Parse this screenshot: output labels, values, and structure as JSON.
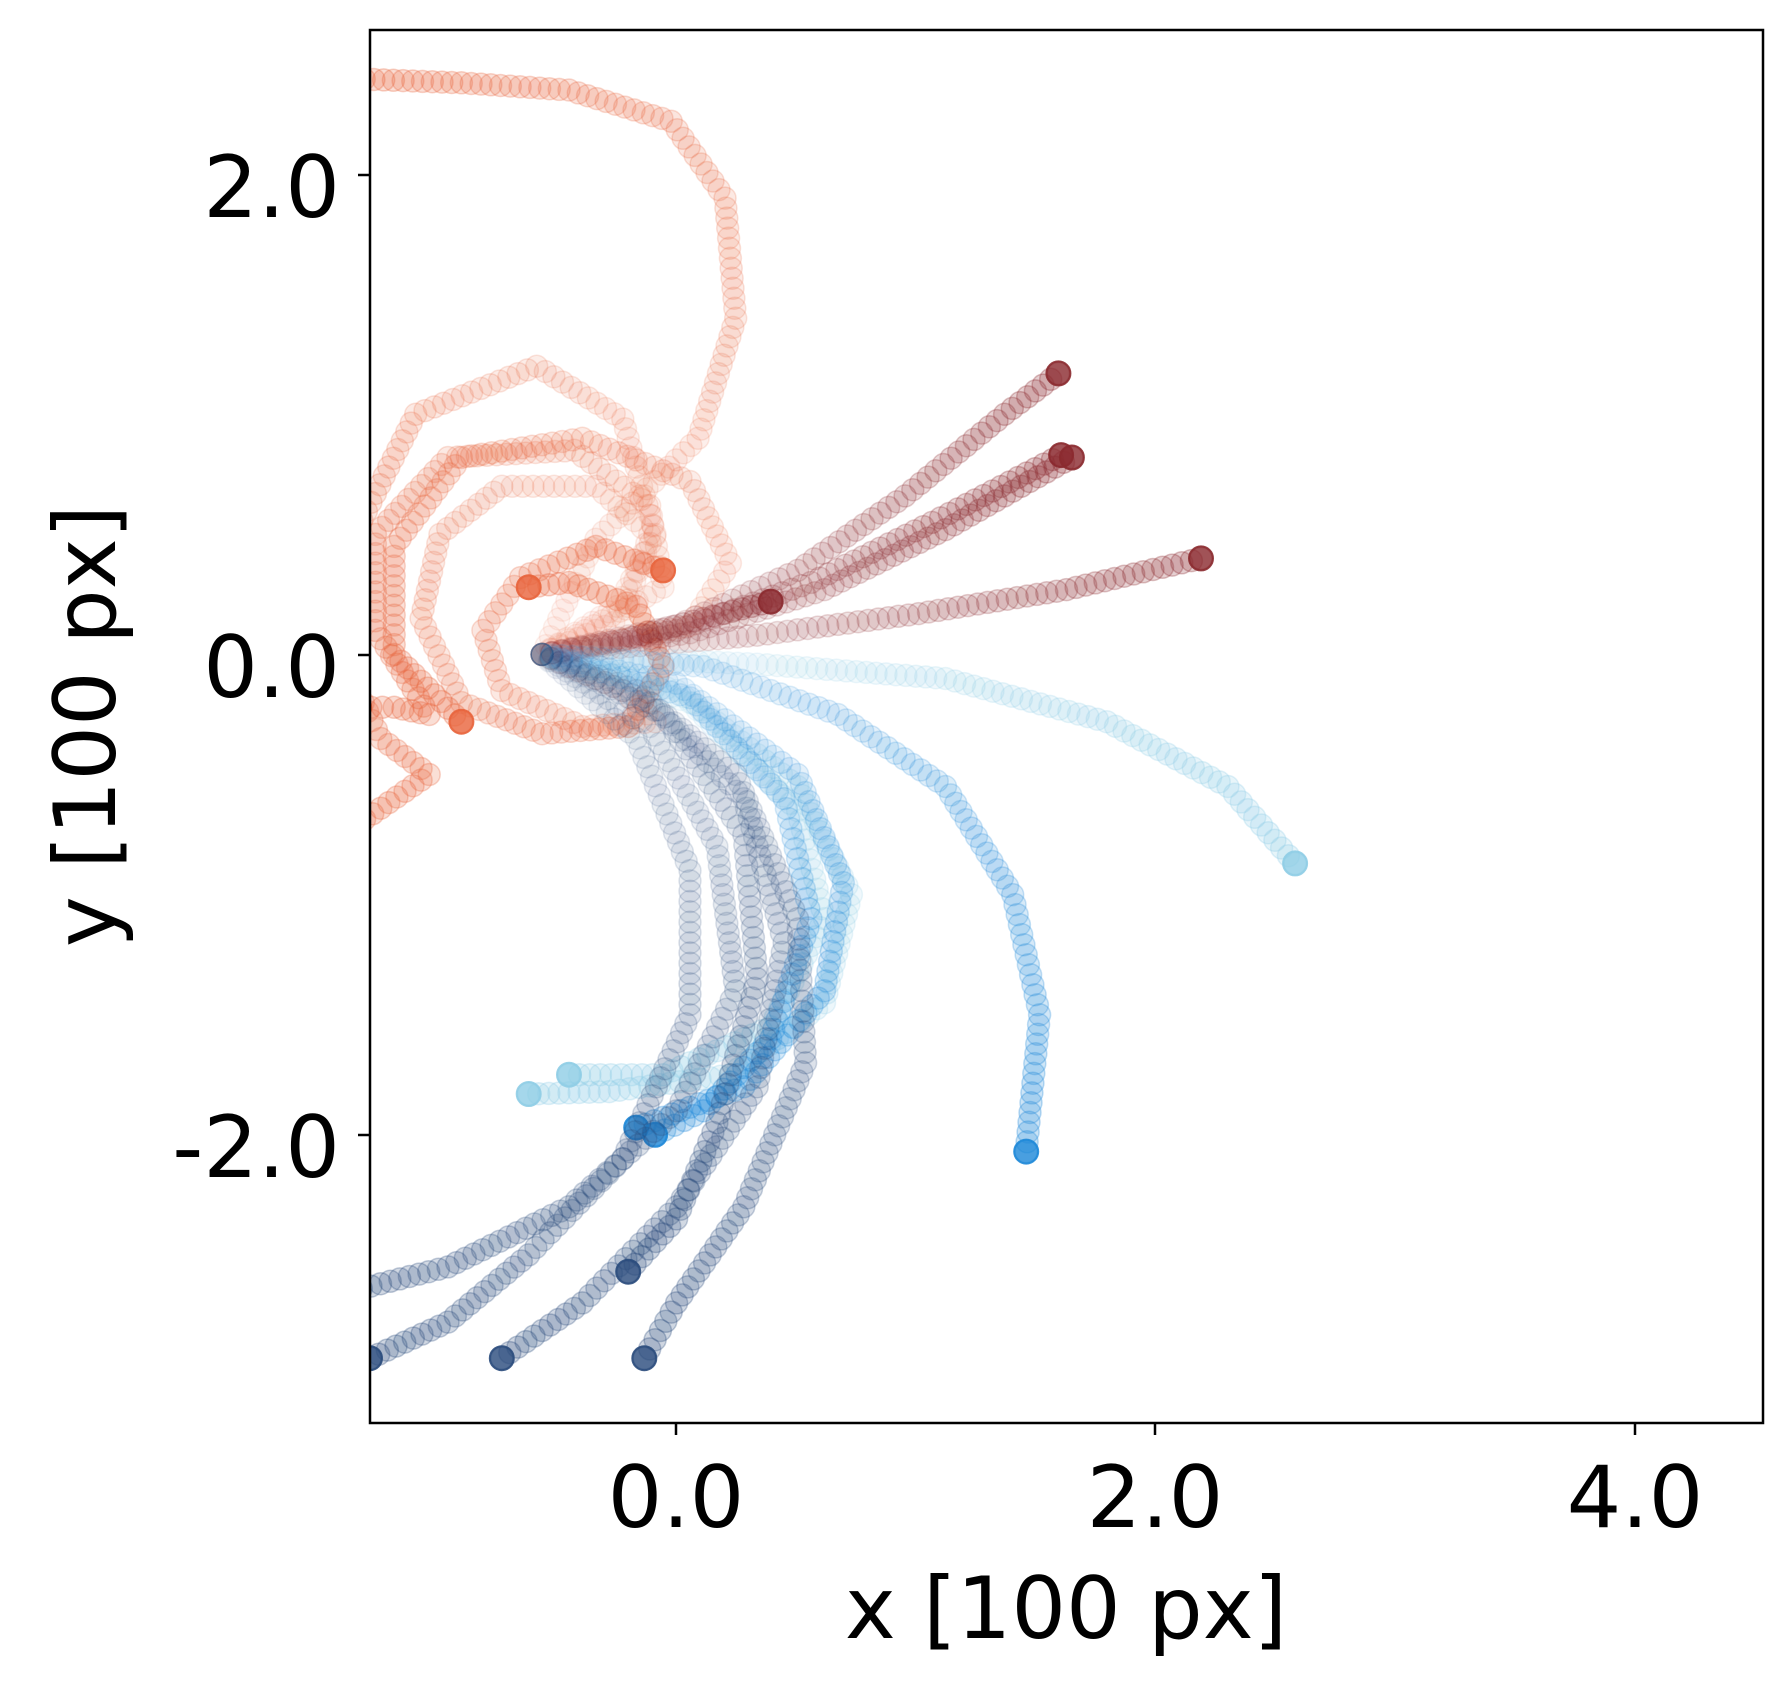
{
  "chart_data": {
    "type": "scatter",
    "title": "",
    "xlabel": "x [100 px]",
    "ylabel": "y [100 px]",
    "xlim": [
      -0.64,
      4.54
    ],
    "ylim": [
      -3.2,
      2.6
    ],
    "xticks": [
      0.0,
      2.0,
      4.0
    ],
    "xtick_labels": [
      "0.0",
      "2.0",
      "4.0"
    ],
    "yticks": [
      2.0,
      0.0,
      -2.0
    ],
    "ytick_labels": [
      "2.0",
      "0.0",
      "-2.0"
    ],
    "grid": false,
    "legend": "none",
    "marker": "circle-trajectory",
    "series": [
      {
        "color": "#e8643c",
        "points": [
          [
            0,
            0
          ],
          [
            0.28,
            0.2
          ],
          [
            0.42,
            0.5
          ],
          [
            0.3,
            0.98
          ],
          [
            -0.02,
            1.2
          ],
          [
            -0.47,
            1.0
          ],
          [
            -0.72,
            0.45
          ],
          [
            -0.73,
            -0.05
          ],
          [
            -0.6,
            -0.35
          ],
          [
            -0.42,
            -0.5
          ],
          [
            -0.78,
            -0.78
          ]
        ]
      },
      {
        "color": "#e8643c",
        "points": [
          [
            0,
            0
          ],
          [
            0.2,
            0.48
          ],
          [
            0.58,
            0.9
          ],
          [
            0.72,
            1.4
          ],
          [
            0.68,
            1.9
          ],
          [
            0.48,
            2.22
          ],
          [
            0.1,
            2.35
          ],
          [
            -0.3,
            2.38
          ],
          [
            -0.77,
            2.4
          ]
        ]
      },
      {
        "color": "#e8643c",
        "points": [
          [
            0,
            0
          ],
          [
            0.45,
            0.28
          ],
          [
            0.4,
            0.62
          ],
          [
            0.12,
            0.85
          ],
          [
            -0.35,
            0.82
          ],
          [
            -0.62,
            0.5
          ],
          [
            -0.62,
            0.1
          ],
          [
            -0.42,
            -0.25
          ],
          [
            -0.55,
            -0.22
          ],
          [
            -0.68,
            -0.22
          ]
        ]
      },
      {
        "color": "#e8643c",
        "points": [
          [
            0,
            0
          ],
          [
            0.3,
            0.15
          ],
          [
            0.4,
            0.5
          ],
          [
            0.2,
            0.7
          ],
          [
            -0.15,
            0.7
          ],
          [
            -0.38,
            0.5
          ],
          [
            -0.45,
            0.15
          ],
          [
            -0.3,
            -0.2
          ],
          [
            0.0,
            -0.33
          ],
          [
            0.32,
            -0.3
          ],
          [
            0.45,
            -0.05
          ],
          [
            0.35,
            0.2
          ],
          [
            0.1,
            0.3
          ],
          [
            -0.05,
            0.28
          ]
        ]
      },
      {
        "color": "#e8643c",
        "points": [
          [
            0,
            0
          ],
          [
            0.3,
            -0.15
          ],
          [
            0.42,
            -0.28
          ],
          [
            0.15,
            -0.3
          ],
          [
            -0.15,
            -0.15
          ],
          [
            -0.22,
            0.1
          ],
          [
            -0.08,
            0.32
          ],
          [
            0.2,
            0.45
          ],
          [
            0.45,
            0.35
          ]
        ]
      },
      {
        "color": "#e8643c",
        "points": [
          [
            0,
            0
          ],
          [
            0.55,
            0.12
          ],
          [
            0.7,
            0.38
          ],
          [
            0.55,
            0.72
          ],
          [
            0.15,
            0.9
          ],
          [
            -0.3,
            0.82
          ],
          [
            -0.55,
            0.45
          ],
          [
            -0.55,
            0.0
          ],
          [
            -0.3,
            -0.28
          ]
        ]
      },
      {
        "color": "#8b2a2f",
        "points": [
          [
            0,
            0
          ],
          [
            0.5,
            0.12
          ],
          [
            0.95,
            0.35
          ],
          [
            1.35,
            0.66
          ],
          [
            1.72,
            1.0
          ],
          [
            1.92,
            1.17
          ]
        ]
      },
      {
        "color": "#8b2a2f",
        "points": [
          [
            0,
            0
          ],
          [
            0.5,
            0.1
          ],
          [
            1.0,
            0.3
          ],
          [
            1.45,
            0.55
          ],
          [
            1.93,
            0.83
          ]
        ]
      },
      {
        "color": "#8b2a2f",
        "points": [
          [
            0,
            0
          ],
          [
            0.55,
            0.09
          ],
          [
            1.05,
            0.27
          ],
          [
            1.5,
            0.52
          ],
          [
            1.97,
            0.82
          ]
        ]
      },
      {
        "color": "#8b2a2f",
        "points": [
          [
            0,
            0
          ],
          [
            0.8,
            0.08
          ],
          [
            1.4,
            0.17
          ],
          [
            1.95,
            0.27
          ],
          [
            2.45,
            0.4
          ]
        ]
      },
      {
        "color": "#8b2a2f",
        "points": [
          [
            0,
            0
          ],
          [
            0.3,
            0.06
          ],
          [
            0.6,
            0.15
          ],
          [
            0.85,
            0.22
          ]
        ]
      },
      {
        "color": "#8fcde6",
        "points": [
          [
            0,
            0
          ],
          [
            0.8,
            -0.04
          ],
          [
            1.5,
            -0.1
          ],
          [
            2.1,
            -0.28
          ],
          [
            2.55,
            -0.55
          ],
          [
            2.8,
            -0.87
          ]
        ]
      },
      {
        "color": "#8fcde6",
        "points": [
          [
            0,
            0
          ],
          [
            0.5,
            -0.15
          ],
          [
            0.95,
            -0.55
          ],
          [
            1.15,
            -1.0
          ],
          [
            1.05,
            -1.45
          ],
          [
            0.7,
            -1.75
          ],
          [
            0.25,
            -1.82
          ],
          [
            -0.05,
            -1.83
          ]
        ]
      },
      {
        "color": "#8fcde6",
        "points": [
          [
            0,
            0
          ],
          [
            0.55,
            -0.2
          ],
          [
            0.95,
            -0.65
          ],
          [
            1.05,
            -1.1
          ],
          [
            0.85,
            -1.55
          ],
          [
            0.45,
            -1.75
          ],
          [
            0.1,
            -1.75
          ]
        ]
      },
      {
        "color": "#1e88d8",
        "points": [
          [
            0,
            0
          ],
          [
            0.6,
            -0.05
          ],
          [
            1.1,
            -0.25
          ],
          [
            1.5,
            -0.55
          ],
          [
            1.75,
            -1.0
          ],
          [
            1.85,
            -1.5
          ],
          [
            1.8,
            -2.07
          ]
        ]
      },
      {
        "color": "#1e88d8",
        "points": [
          [
            0,
            0
          ],
          [
            0.55,
            -0.18
          ],
          [
            0.9,
            -0.6
          ],
          [
            1.0,
            -1.1
          ],
          [
            0.85,
            -1.6
          ],
          [
            0.6,
            -1.9
          ],
          [
            0.42,
            -2.0
          ]
        ]
      },
      {
        "color": "#1e88d8",
        "points": [
          [
            0,
            0
          ],
          [
            0.5,
            -0.12
          ],
          [
            0.95,
            -0.5
          ],
          [
            1.12,
            -0.95
          ],
          [
            1.05,
            -1.4
          ],
          [
            0.75,
            -1.8
          ],
          [
            0.35,
            -1.97
          ]
        ]
      },
      {
        "color": "#2a4b7c",
        "points": [
          [
            0,
            0
          ],
          [
            0.35,
            -0.15
          ],
          [
            0.72,
            -0.5
          ],
          [
            0.95,
            -1.1
          ],
          [
            0.98,
            -1.7
          ],
          [
            0.75,
            -2.3
          ],
          [
            0.5,
            -2.7
          ],
          [
            0.38,
            -2.93
          ]
        ]
      },
      {
        "color": "#2a4b7c",
        "points": [
          [
            0,
            0
          ],
          [
            0.4,
            -0.2
          ],
          [
            0.75,
            -0.6
          ],
          [
            0.9,
            -1.2
          ],
          [
            0.8,
            -1.8
          ],
          [
            0.5,
            -2.3
          ],
          [
            0.15,
            -2.7
          ],
          [
            -0.15,
            -2.93
          ]
        ]
      },
      {
        "color": "#2a4b7c",
        "points": [
          [
            0,
            0
          ],
          [
            0.45,
            -0.25
          ],
          [
            0.75,
            -0.75
          ],
          [
            0.8,
            -1.35
          ],
          [
            0.65,
            -1.95
          ],
          [
            0.5,
            -2.35
          ],
          [
            0.32,
            -2.57
          ]
        ]
      },
      {
        "color": "#2a4b7c",
        "points": [
          [
            0,
            0
          ],
          [
            0.4,
            -0.3
          ],
          [
            0.65,
            -0.8
          ],
          [
            0.72,
            -1.4
          ],
          [
            0.5,
            -1.9
          ],
          [
            0.1,
            -2.3
          ],
          [
            -0.35,
            -2.55
          ],
          [
            -0.78,
            -2.67
          ]
        ]
      },
      {
        "color": "#2a4b7c",
        "points": [
          [
            0,
            0
          ],
          [
            0.35,
            -0.35
          ],
          [
            0.55,
            -0.9
          ],
          [
            0.55,
            -1.5
          ],
          [
            0.3,
            -2.1
          ],
          [
            -0.05,
            -2.5
          ],
          [
            -0.35,
            -2.78
          ],
          [
            -0.64,
            -2.93
          ]
        ]
      }
    ]
  }
}
